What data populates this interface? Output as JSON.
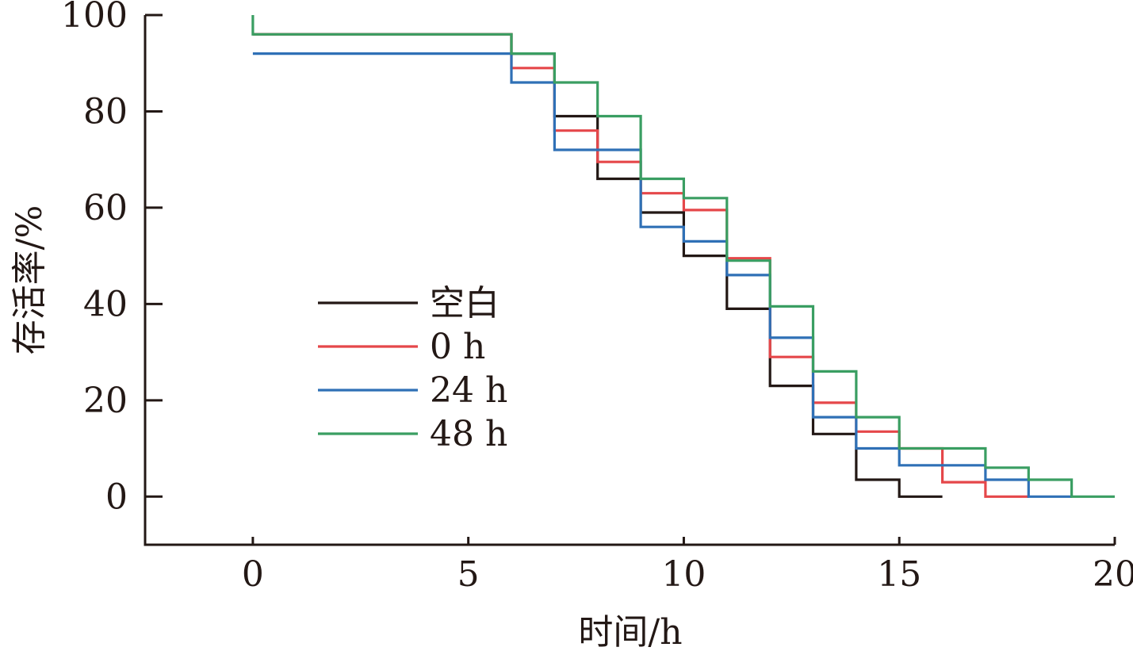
{
  "chart_data": {
    "type": "line",
    "step": true,
    "xlabel": "时间/h",
    "ylabel": "存活率/%",
    "xlim": [
      -2.5,
      20
    ],
    "ylim": [
      -10,
      100
    ],
    "x_ticks": [
      0,
      5,
      10,
      15,
      20
    ],
    "y_ticks": [
      0,
      20,
      40,
      60,
      80,
      100
    ],
    "x_tick_labels": [
      "0",
      "5",
      "10",
      "15",
      "20"
    ],
    "y_tick_labels": [
      "0",
      "20",
      "40",
      "60",
      "80",
      "100"
    ],
    "grid": false,
    "legend_position": "center-left",
    "series": [
      {
        "name": "空白",
        "color": "#231815",
        "points": [
          [
            0,
            96
          ],
          [
            6,
            96
          ],
          [
            6,
            92
          ],
          [
            7,
            92
          ],
          [
            7,
            79
          ],
          [
            8,
            79
          ],
          [
            8,
            66
          ],
          [
            9,
            66
          ],
          [
            9,
            59
          ],
          [
            10,
            59
          ],
          [
            10,
            50
          ],
          [
            11,
            50
          ],
          [
            11,
            39
          ],
          [
            12,
            39
          ],
          [
            12,
            23
          ],
          [
            13,
            23
          ],
          [
            13,
            13
          ],
          [
            14,
            13
          ],
          [
            14,
            3.5
          ],
          [
            15,
            3.5
          ],
          [
            15,
            0
          ],
          [
            16,
            0
          ]
        ]
      },
      {
        "name": "0 h",
        "color": "#e5474a",
        "points": [
          [
            0,
            96
          ],
          [
            6,
            96
          ],
          [
            6,
            89
          ],
          [
            7,
            89
          ],
          [
            7,
            76
          ],
          [
            8,
            76
          ],
          [
            8,
            69.5
          ],
          [
            9,
            69.5
          ],
          [
            9,
            63
          ],
          [
            10,
            63
          ],
          [
            10,
            59.5
          ],
          [
            11,
            59.5
          ],
          [
            11,
            49.5
          ],
          [
            12,
            49.5
          ],
          [
            12,
            29
          ],
          [
            13,
            29
          ],
          [
            13,
            19.5
          ],
          [
            14,
            19.5
          ],
          [
            14,
            13.5
          ],
          [
            15,
            13.5
          ],
          [
            15,
            10
          ],
          [
            16,
            10
          ],
          [
            16,
            3
          ],
          [
            17,
            3
          ],
          [
            17,
            0
          ],
          [
            18,
            0
          ]
        ]
      },
      {
        "name": "24 h",
        "color": "#2f70b6",
        "points": [
          [
            0,
            92
          ],
          [
            6,
            92
          ],
          [
            6,
            86
          ],
          [
            7,
            86
          ],
          [
            7,
            72
          ],
          [
            8,
            72
          ],
          [
            8,
            72
          ],
          [
            9,
            72
          ],
          [
            9,
            56
          ],
          [
            10,
            56
          ],
          [
            10,
            53
          ],
          [
            11,
            53
          ],
          [
            11,
            46
          ],
          [
            12,
            46
          ],
          [
            12,
            33
          ],
          [
            13,
            33
          ],
          [
            13,
            16.5
          ],
          [
            14,
            16.5
          ],
          [
            14,
            10
          ],
          [
            15,
            10
          ],
          [
            15,
            6.5
          ],
          [
            16,
            6.5
          ],
          [
            16,
            6.5
          ],
          [
            17,
            6.5
          ],
          [
            17,
            3.5
          ],
          [
            18,
            3.5
          ],
          [
            18,
            0
          ],
          [
            19,
            0
          ]
        ]
      },
      {
        "name": "48 h",
        "color": "#3a9e62",
        "points": [
          [
            0,
            100
          ],
          [
            0,
            96
          ],
          [
            6,
            96
          ],
          [
            6,
            92
          ],
          [
            7,
            92
          ],
          [
            7,
            86
          ],
          [
            8,
            86
          ],
          [
            8,
            79
          ],
          [
            9,
            79
          ],
          [
            9,
            66
          ],
          [
            10,
            66
          ],
          [
            10,
            62
          ],
          [
            11,
            62
          ],
          [
            11,
            49
          ],
          [
            12,
            49
          ],
          [
            12,
            39.5
          ],
          [
            13,
            39.5
          ],
          [
            13,
            26
          ],
          [
            14,
            26
          ],
          [
            14,
            16.5
          ],
          [
            15,
            16.5
          ],
          [
            15,
            10
          ],
          [
            16,
            10
          ],
          [
            16,
            10
          ],
          [
            17,
            10
          ],
          [
            17,
            6
          ],
          [
            18,
            6
          ],
          [
            18,
            3.5
          ],
          [
            19,
            3.5
          ],
          [
            19,
            0
          ],
          [
            20,
            0
          ]
        ]
      }
    ]
  }
}
